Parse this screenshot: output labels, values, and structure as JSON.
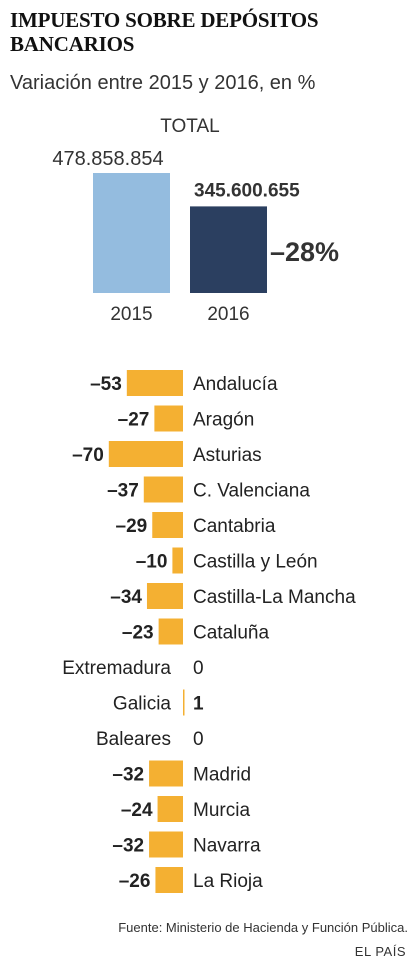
{
  "header": {
    "title": "IMPUESTO SOBRE DEPÓSITOS BANCARIOS",
    "subtitle": "Variación entre 2015 y 2016, en %"
  },
  "colors": {
    "bar_2015": "#94bcdf",
    "bar_2016": "#2b3f60",
    "bar_regions": "#f4b032",
    "text": "#222222"
  },
  "chart_data": [
    {
      "type": "bar",
      "title": "TOTAL",
      "categories": [
        "2015",
        "2016"
      ],
      "values": [
        478858854,
        345600655
      ],
      "value_labels": [
        "478.858.854",
        "345.600.655"
      ],
      "change_label": "–28%",
      "change": -28
    },
    {
      "type": "bar",
      "orientation": "horizontal",
      "categories": [
        "Andalucía",
        "Aragón",
        "Asturias",
        "C. Valenciana",
        "Cantabria",
        "Castilla y León",
        "Castilla-La Mancha",
        "Cataluña",
        "Extremadura",
        "Galicia",
        "Baleares",
        "Madrid",
        "Murcia",
        "Navarra",
        "La Rioja"
      ],
      "values": [
        -53,
        -27,
        -70,
        -37,
        -29,
        -10,
        -34,
        -23,
        0,
        1,
        0,
        -32,
        -24,
        -32,
        -26
      ],
      "value_labels": [
        "–53",
        "–27",
        "–70",
        "–37",
        "–29",
        "–10",
        "–34",
        "–23",
        "0",
        "1",
        "0",
        "–32",
        "–24",
        "–32",
        "–26"
      ]
    }
  ],
  "footer": {
    "source": "Fuente: Ministerio de Hacienda y Función Pública.",
    "brand": "EL PAÍS"
  }
}
